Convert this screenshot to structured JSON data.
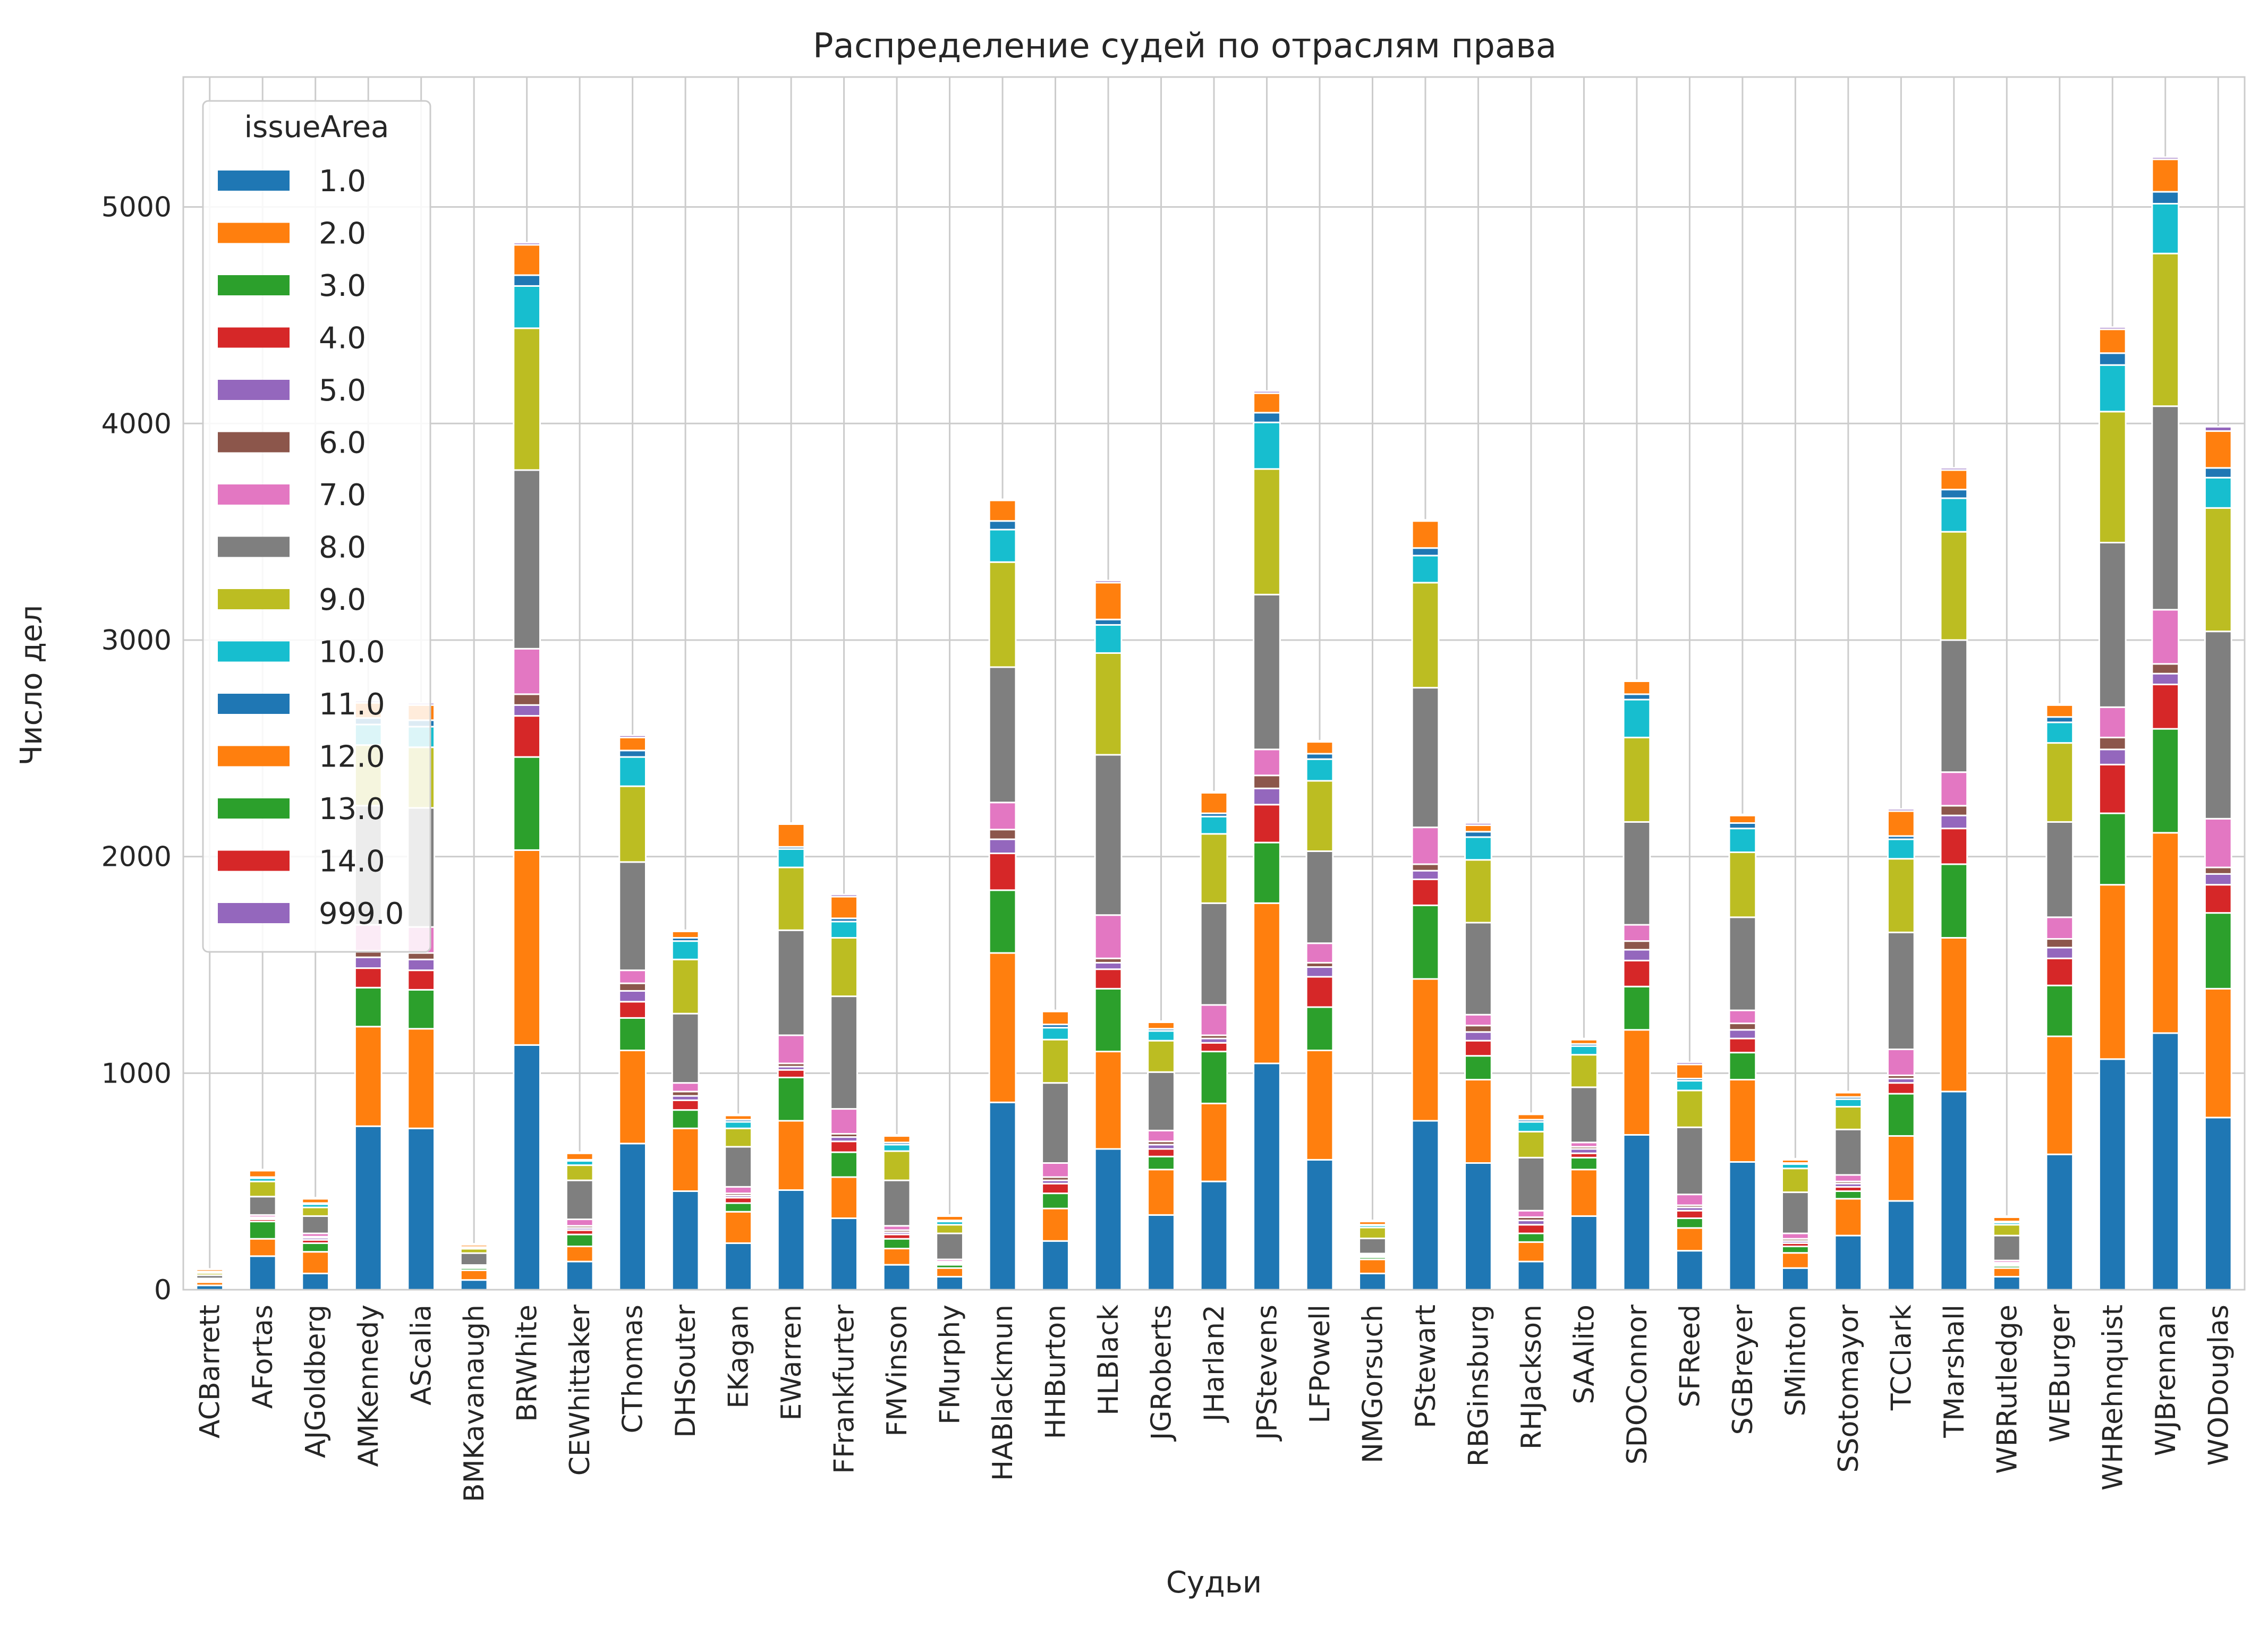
{
  "chart_data": {
    "type": "bar",
    "stacked": true,
    "title": "Распределение судей по отраслям права",
    "xlabel": "Судьи",
    "ylabel": "Число дел",
    "ylim": [
      0,
      5600
    ],
    "yticks": [
      0,
      1000,
      2000,
      3000,
      4000,
      5000
    ],
    "grid": true,
    "legend": {
      "title": "issueArea",
      "position": "top-left"
    },
    "categories": [
      "ACBarrett",
      "AFortas",
      "AJGoldberg",
      "AMKennedy",
      "AScalia",
      "BMKavanaugh",
      "BRWhite",
      "CEWhittaker",
      "CThomas",
      "DHSouter",
      "EKagan",
      "EWarren",
      "FFrankfurter",
      "FMVinson",
      "FMurphy",
      "HABlackmun",
      "HHBurton",
      "HLBlack",
      "JGRoberts",
      "JHarlan2",
      "JPStevens",
      "LFPowell",
      "NMGorsuch",
      "PStewart",
      "RBGinsburg",
      "RHJackson",
      "SAAlito",
      "SDOConnor",
      "SFReed",
      "SGBreyer",
      "SMinton",
      "SSotomayor",
      "TCClark",
      "TMarshall",
      "WBRutledge",
      "WEBurger",
      "WHRehnquist",
      "WJBrennan",
      "WODouglas"
    ],
    "series": [
      {
        "name": "1.0",
        "color": "#1f77b4",
        "values": [
          20,
          155,
          75,
          755,
          745,
          45,
          1130,
          130,
          675,
          455,
          215,
          460,
          330,
          115,
          60,
          865,
          225,
          650,
          345,
          500,
          1045,
          600,
          75,
          780,
          585,
          130,
          340,
          715,
          180,
          590,
          100,
          250,
          410,
          915,
          60,
          625,
          1065,
          1185,
          795
        ]
      },
      {
        "name": "2.0",
        "color": "#ff7f0e",
        "values": [
          15,
          80,
          100,
          460,
          460,
          45,
          900,
          70,
          430,
          290,
          145,
          320,
          190,
          75,
          40,
          690,
          150,
          450,
          210,
          360,
          740,
          505,
          65,
          655,
          385,
          90,
          215,
          485,
          105,
          380,
          70,
          170,
          300,
          710,
          40,
          545,
          805,
          925,
          595
        ]
      },
      {
        "name": "3.0",
        "color": "#2ca02c",
        "values": [
          5,
          80,
          40,
          180,
          180,
          10,
          430,
          55,
          150,
          85,
          40,
          200,
          115,
          45,
          15,
          290,
          70,
          290,
          60,
          240,
          280,
          200,
          10,
          340,
          110,
          40,
          55,
          200,
          45,
          125,
          30,
          35,
          195,
          340,
          10,
          235,
          330,
          480,
          350
        ]
      },
      {
        "name": "4.0",
        "color": "#d62728",
        "values": [
          5,
          10,
          15,
          90,
          90,
          5,
          190,
          20,
          75,
          45,
          25,
          35,
          50,
          20,
          5,
          170,
          45,
          90,
          35,
          40,
          175,
          140,
          5,
          120,
          70,
          40,
          20,
          120,
          35,
          65,
          15,
          20,
          50,
          165,
          5,
          125,
          225,
          205,
          130
        ]
      },
      {
        "name": "5.0",
        "color": "#9467bd",
        "values": [
          2,
          5,
          10,
          50,
          50,
          2,
          50,
          10,
          50,
          20,
          10,
          15,
          20,
          10,
          5,
          65,
          15,
          30,
          20,
          20,
          75,
          45,
          5,
          40,
          40,
          20,
          20,
          50,
          15,
          40,
          10,
          15,
          20,
          60,
          5,
          50,
          70,
          50,
          50
        ]
      },
      {
        "name": "6.0",
        "color": "#8c564b",
        "values": [
          2,
          5,
          5,
          30,
          30,
          2,
          50,
          10,
          35,
          20,
          10,
          15,
          15,
          10,
          5,
          45,
          15,
          20,
          15,
          15,
          60,
          20,
          2,
          30,
          30,
          15,
          10,
          40,
          10,
          30,
          10,
          10,
          15,
          45,
          5,
          40,
          55,
          45,
          30
        ]
      },
      {
        "name": "7.0",
        "color": "#e377c2",
        "values": [
          3,
          10,
          15,
          120,
          120,
          5,
          210,
          30,
          60,
          40,
          30,
          130,
          115,
          20,
          10,
          125,
          65,
          200,
          50,
          140,
          120,
          90,
          5,
          170,
          50,
          30,
          20,
          75,
          50,
          60,
          25,
          30,
          120,
          155,
          10,
          100,
          140,
          250,
          225
        ]
      },
      {
        "name": "8.0",
        "color": "#7f7f7f",
        "values": [
          15,
          85,
          80,
          550,
          550,
          55,
          825,
          180,
          500,
          320,
          185,
          485,
          520,
          210,
          120,
          625,
          370,
          740,
          270,
          470,
          715,
          425,
          70,
          645,
          425,
          245,
          255,
          475,
          310,
          430,
          190,
          210,
          540,
          610,
          115,
          440,
          760,
          940,
          865
        ]
      },
      {
        "name": "9.0",
        "color": "#bcbd22",
        "values": [
          10,
          70,
          40,
          280,
          280,
          20,
          655,
          70,
          350,
          250,
          85,
          290,
          270,
          135,
          40,
          485,
          200,
          470,
          145,
          320,
          580,
          325,
          50,
          485,
          290,
          120,
          150,
          390,
          170,
          300,
          110,
          105,
          340,
          500,
          50,
          365,
          605,
          705,
          570
        ]
      },
      {
        "name": "10.0",
        "color": "#17becf",
        "values": [
          5,
          15,
          15,
          95,
          95,
          5,
          195,
          20,
          135,
          85,
          30,
          85,
          75,
          30,
          15,
          150,
          55,
          130,
          45,
          80,
          215,
          100,
          10,
          125,
          105,
          45,
          40,
          175,
          45,
          110,
          20,
          35,
          90,
          155,
          10,
          95,
          215,
          230,
          140
        ]
      },
      {
        "name": "11.0",
        "color": "#1f77b4",
        "values": [
          2,
          5,
          5,
          30,
          30,
          3,
          50,
          5,
          30,
          15,
          10,
          10,
          15,
          10,
          5,
          40,
          15,
          25,
          10,
          15,
          45,
          25,
          3,
          35,
          25,
          10,
          10,
          25,
          10,
          25,
          5,
          10,
          15,
          40,
          5,
          25,
          55,
          55,
          45
        ]
      },
      {
        "name": "12.0",
        "color": "#ff7f0e",
        "values": [
          10,
          30,
          20,
          70,
          70,
          10,
          140,
          30,
          60,
          30,
          20,
          105,
          100,
          30,
          20,
          95,
          60,
          170,
          30,
          95,
          90,
          55,
          15,
          125,
          30,
          25,
          20,
          60,
          65,
          35,
          15,
          20,
          115,
          90,
          20,
          55,
          110,
          150,
          170
        ]
      },
      {
        "name": "13.0",
        "color": "#2ca02c",
        "values": [
          0,
          0,
          0,
          0,
          0,
          0,
          0,
          0,
          0,
          0,
          0,
          0,
          0,
          0,
          0,
          0,
          0,
          0,
          0,
          0,
          0,
          0,
          0,
          0,
          0,
          0,
          0,
          0,
          0,
          0,
          0,
          0,
          0,
          0,
          0,
          0,
          0,
          0,
          0
        ]
      },
      {
        "name": "14.0",
        "color": "#d62728",
        "values": [
          0,
          0,
          0,
          0,
          0,
          0,
          0,
          0,
          0,
          0,
          0,
          0,
          0,
          0,
          0,
          0,
          0,
          0,
          0,
          0,
          0,
          0,
          0,
          0,
          0,
          0,
          0,
          0,
          0,
          0,
          0,
          0,
          0,
          0,
          0,
          0,
          0,
          0,
          0
        ]
      },
      {
        "name": "999.0",
        "color": "#9467bd",
        "values": [
          2,
          5,
          5,
          10,
          10,
          5,
          10,
          5,
          10,
          5,
          5,
          5,
          10,
          5,
          5,
          5,
          5,
          10,
          5,
          5,
          10,
          5,
          5,
          5,
          10,
          5,
          5,
          5,
          10,
          5,
          5,
          5,
          10,
          10,
          5,
          5,
          10,
          10,
          20
        ]
      }
    ]
  }
}
